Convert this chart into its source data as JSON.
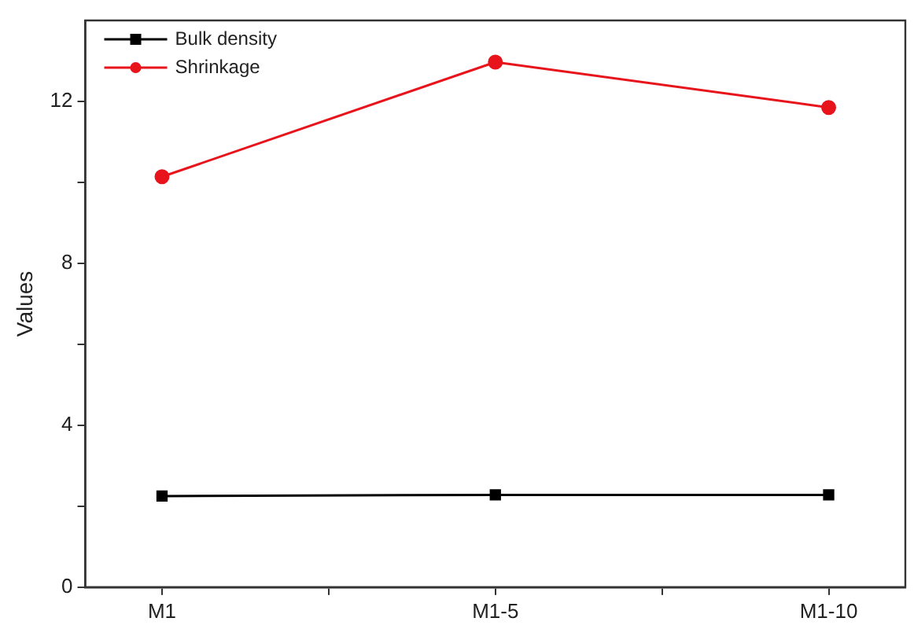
{
  "chart_data": {
    "type": "line",
    "ylabel": "Values",
    "categories": [
      "M1",
      "M1-5",
      "M1-10"
    ],
    "series": [
      {
        "name": "Bulk density",
        "color": "#000000",
        "marker": "square",
        "values": [
          2.25,
          2.28,
          2.28
        ]
      },
      {
        "name": "Shrinkage",
        "color": "#e8141c",
        "marker": "circle",
        "values": [
          10.14,
          12.97,
          11.85
        ]
      }
    ],
    "ylim": [
      0,
      14
    ],
    "yticks": [
      0,
      {
        "value": 2,
        "label": null
      },
      4,
      {
        "value": 6,
        "label": null
      },
      8,
      {
        "value": 10,
        "label": null
      },
      12
    ],
    "grid": false,
    "legend": "top left"
  }
}
